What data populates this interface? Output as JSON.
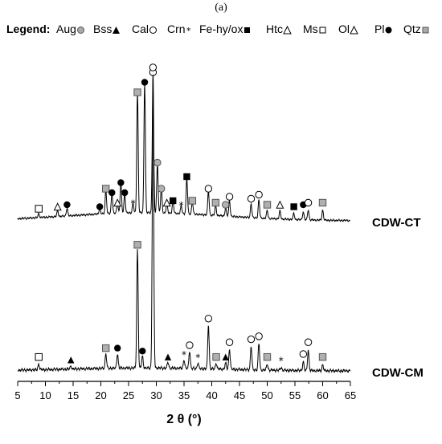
{
  "panel_label": "(a)",
  "legend": {
    "title": "Legend:",
    "items": [
      {
        "label": "Aug",
        "marker": "circle-gray"
      },
      {
        "label": "Bss",
        "marker": "triangle-filled"
      },
      {
        "label": "Cal",
        "marker": "circle-open"
      },
      {
        "label": "Crn",
        "marker": "star"
      },
      {
        "label": "Fe-hy/ox",
        "marker": "square-filled"
      },
      {
        "label": "Htc",
        "marker": "triangle-open"
      },
      {
        "label": "Ms",
        "marker": "square-open"
      },
      {
        "label": "Ol",
        "marker": "triangle-open"
      },
      {
        "label": "Pl",
        "marker": "circle-filled"
      },
      {
        "label": "Qtz",
        "marker": "square-gray"
      }
    ]
  },
  "chart_data": {
    "type": "line",
    "title": "",
    "xlabel": "2 θ (°)",
    "ylabel": "",
    "xlim": [
      5,
      65
    ],
    "xticks": [
      5,
      10,
      15,
      20,
      25,
      30,
      35,
      40,
      45,
      50,
      55,
      60,
      65
    ],
    "grid": false,
    "series": [
      {
        "name": "CDW-CT",
        "baseline": 0.04,
        "peaks": [
          {
            "x": 8.8,
            "h": 0.02,
            "marker": "square-open"
          },
          {
            "x": 12.2,
            "h": 0.03,
            "marker": "triangle-open"
          },
          {
            "x": 13.9,
            "h": 0.04,
            "marker": "circle-filled"
          },
          {
            "x": 19.8,
            "h": 0.03,
            "marker": "circle-filled"
          },
          {
            "x": 20.9,
            "h": 0.12,
            "marker": "square-gray"
          },
          {
            "x": 22.0,
            "h": 0.1,
            "marker": "circle-filled"
          },
          {
            "x": 23.0,
            "h": 0.05,
            "marker": "triangle-open"
          },
          {
            "x": 23.6,
            "h": 0.15,
            "marker": "circle-filled"
          },
          {
            "x": 24.3,
            "h": 0.1,
            "marker": "circle-filled"
          },
          {
            "x": 25.8,
            "h": 0.05,
            "marker": "star"
          },
          {
            "x": 26.6,
            "h": 0.6,
            "marker": "square-gray"
          },
          {
            "x": 27.9,
            "h": 0.65,
            "marker": "circle-filled"
          },
          {
            "x": 29.4,
            "h": 0.7,
            "marker": "circle-open"
          },
          {
            "x": 30.2,
            "h": 0.25,
            "marker": "circle-gray"
          },
          {
            "x": 30.9,
            "h": 0.12,
            "marker": "circle-gray"
          },
          {
            "x": 31.9,
            "h": 0.05,
            "marker": "triangle-open"
          },
          {
            "x": 33.0,
            "h": 0.06,
            "marker": "square-filled"
          },
          {
            "x": 34.5,
            "h": 0.04,
            "marker": "star"
          },
          {
            "x": 35.5,
            "h": 0.18,
            "marker": "square-filled"
          },
          {
            "x": 36.5,
            "h": 0.06,
            "marker": "square-gray"
          },
          {
            "x": 39.4,
            "h": 0.12,
            "marker": "circle-open"
          },
          {
            "x": 40.7,
            "h": 0.05,
            "marker": "square-gray"
          },
          {
            "x": 42.5,
            "h": 0.04,
            "marker": "circle-gray"
          },
          {
            "x": 43.2,
            "h": 0.08,
            "marker": "circle-open"
          },
          {
            "x": 47.1,
            "h": 0.07,
            "marker": "circle-open"
          },
          {
            "x": 48.5,
            "h": 0.09,
            "marker": "circle-open"
          },
          {
            "x": 50.0,
            "h": 0.04,
            "marker": "square-gray"
          },
          {
            "x": 52.3,
            "h": 0.04,
            "marker": "triangle-open"
          },
          {
            "x": 54.8,
            "h": 0.03,
            "marker": "square-filled"
          },
          {
            "x": 56.5,
            "h": 0.04,
            "marker": "circle-filled"
          },
          {
            "x": 57.4,
            "h": 0.05,
            "marker": "circle-open"
          },
          {
            "x": 60.0,
            "h": 0.05,
            "marker": "square-gray"
          }
        ]
      },
      {
        "name": "CDW-CM",
        "baseline": 0.01,
        "peaks": [
          {
            "x": 8.8,
            "h": 0.02,
            "marker": "square-open"
          },
          {
            "x": 14.6,
            "h": 0.01,
            "marker": "triangle-filled"
          },
          {
            "x": 20.9,
            "h": 0.05,
            "marker": "square-gray"
          },
          {
            "x": 23.0,
            "h": 0.05,
            "marker": "circle-filled"
          },
          {
            "x": 26.6,
            "h": 0.4,
            "marker": "square-gray"
          },
          {
            "x": 27.5,
            "h": 0.04,
            "marker": "circle-filled"
          },
          {
            "x": 29.4,
            "h": 1.0,
            "marker": "circle-open"
          },
          {
            "x": 32.1,
            "h": 0.02,
            "marker": "triangle-filled"
          },
          {
            "x": 35.0,
            "h": 0.03,
            "marker": "star"
          },
          {
            "x": 36.0,
            "h": 0.06,
            "marker": "circle-open"
          },
          {
            "x": 37.5,
            "h": 0.02,
            "marker": "star"
          },
          {
            "x": 39.4,
            "h": 0.15,
            "marker": "circle-open"
          },
          {
            "x": 40.8,
            "h": 0.02,
            "marker": "square-gray"
          },
          {
            "x": 42.5,
            "h": 0.02,
            "marker": "triangle-filled"
          },
          {
            "x": 43.2,
            "h": 0.07,
            "marker": "circle-open"
          },
          {
            "x": 47.1,
            "h": 0.08,
            "marker": "circle-open"
          },
          {
            "x": 48.5,
            "h": 0.09,
            "marker": "circle-open"
          },
          {
            "x": 50.0,
            "h": 0.02,
            "marker": "square-gray"
          },
          {
            "x": 52.5,
            "h": 0.01,
            "marker": "star"
          },
          {
            "x": 56.5,
            "h": 0.03,
            "marker": "circle-open"
          },
          {
            "x": 57.4,
            "h": 0.07,
            "marker": "circle-open"
          },
          {
            "x": 60.0,
            "h": 0.02,
            "marker": "square-gray"
          }
        ]
      }
    ]
  }
}
